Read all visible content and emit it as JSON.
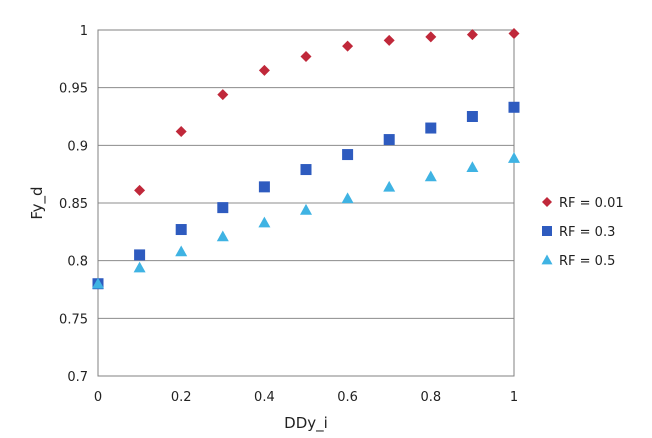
{
  "chart_data": {
    "type": "scatter",
    "xlabel": "DDy_i",
    "ylabel": "Fy_d",
    "xlim": [
      0,
      1
    ],
    "ylim": [
      0.7,
      1
    ],
    "x_ticks": [
      "0",
      "0.2",
      "0.4",
      "0.6",
      "0.8",
      "1"
    ],
    "y_ticks": [
      "0.7",
      "0.75",
      "0.8",
      "0.85",
      "0.9",
      "0.95",
      "1"
    ],
    "grid": "horizontal",
    "legend_position": "right",
    "series": [
      {
        "name": "RF = 0.01",
        "marker": "diamond",
        "color": "#c0283a",
        "x": [
          0.1,
          0.2,
          0.3,
          0.4,
          0.5,
          0.6,
          0.7,
          0.8,
          0.9,
          1.0
        ],
        "y": [
          0.861,
          0.912,
          0.944,
          0.965,
          0.977,
          0.986,
          0.991,
          0.994,
          0.996,
          0.997
        ]
      },
      {
        "name": "RF = 0.3",
        "marker": "square",
        "color": "#2e5bbf",
        "x": [
          0.0,
          0.1,
          0.2,
          0.3,
          0.4,
          0.5,
          0.6,
          0.7,
          0.8,
          0.9,
          1.0
        ],
        "y": [
          0.78,
          0.805,
          0.827,
          0.846,
          0.864,
          0.879,
          0.892,
          0.905,
          0.915,
          0.925,
          0.933
        ]
      },
      {
        "name": "RF = 0.5",
        "marker": "triangle",
        "color": "#3fb3e3",
        "x": [
          0.0,
          0.1,
          0.2,
          0.3,
          0.4,
          0.5,
          0.6,
          0.7,
          0.8,
          0.9,
          1.0
        ],
        "y": [
          0.78,
          0.794,
          0.808,
          0.821,
          0.833,
          0.844,
          0.854,
          0.864,
          0.873,
          0.881,
          0.889
        ]
      }
    ]
  }
}
